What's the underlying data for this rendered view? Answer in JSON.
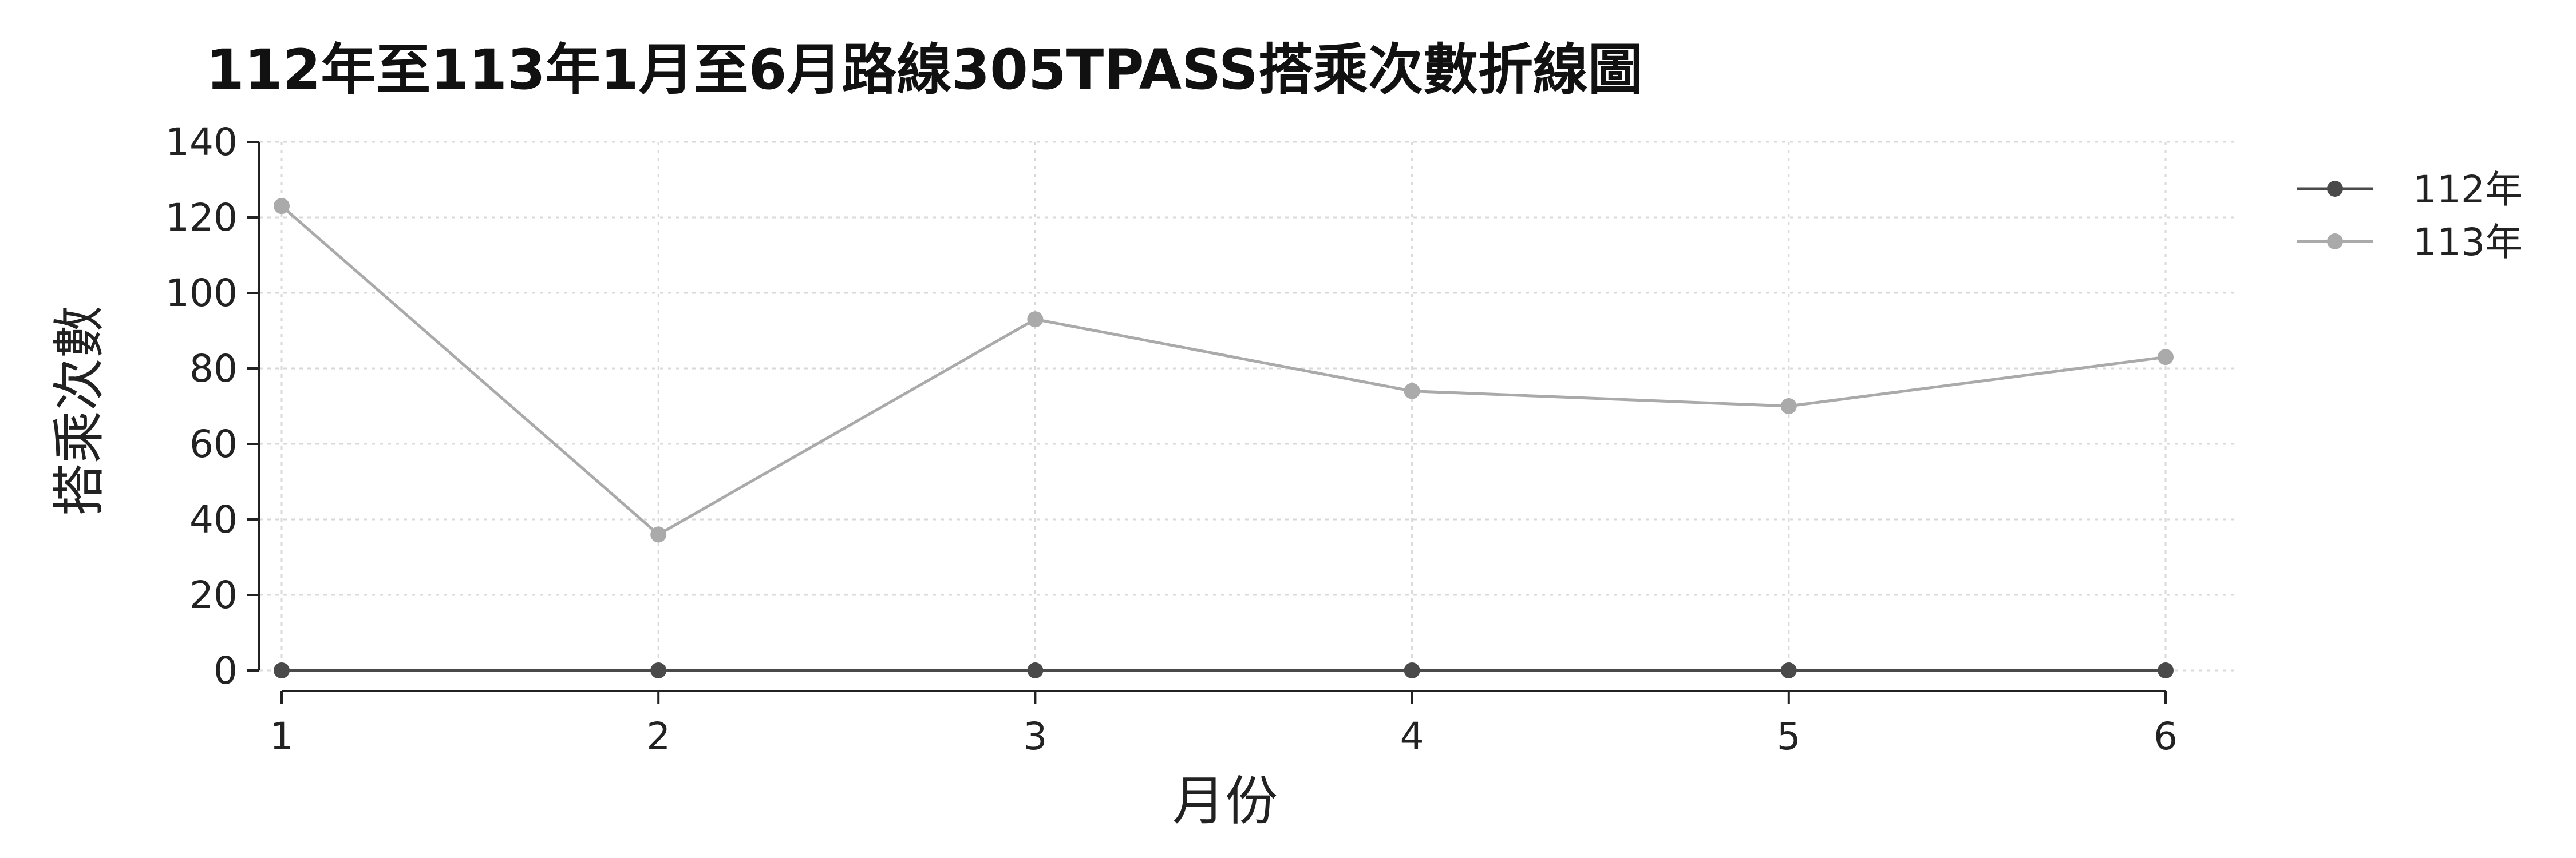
{
  "chart_data": {
    "type": "line",
    "title": "112年至113年1月至6月路線305TPASS搭乘次數折線圖",
    "xlabel": "月份",
    "ylabel": "搭乘次數",
    "x": [
      1,
      2,
      3,
      4,
      5,
      6
    ],
    "x_tick_labels": [
      "1",
      "2",
      "3",
      "4",
      "5",
      "6"
    ],
    "xlim": [
      1,
      6
    ],
    "ylim": [
      0,
      140
    ],
    "y_ticks": [
      0,
      20,
      40,
      60,
      80,
      100,
      120,
      140
    ],
    "y_tick_labels": [
      "0",
      "20",
      "40",
      "60",
      "80",
      "100",
      "120",
      "140"
    ],
    "grid": true,
    "legend_position": "top-right",
    "series": [
      {
        "name": "112年",
        "color": "#4a4a4a",
        "values": [
          0,
          0,
          0,
          0,
          0,
          0
        ]
      },
      {
        "name": "113年",
        "color": "#aaaaaa",
        "values": [
          123,
          36,
          93,
          74,
          70,
          83
        ]
      }
    ]
  }
}
